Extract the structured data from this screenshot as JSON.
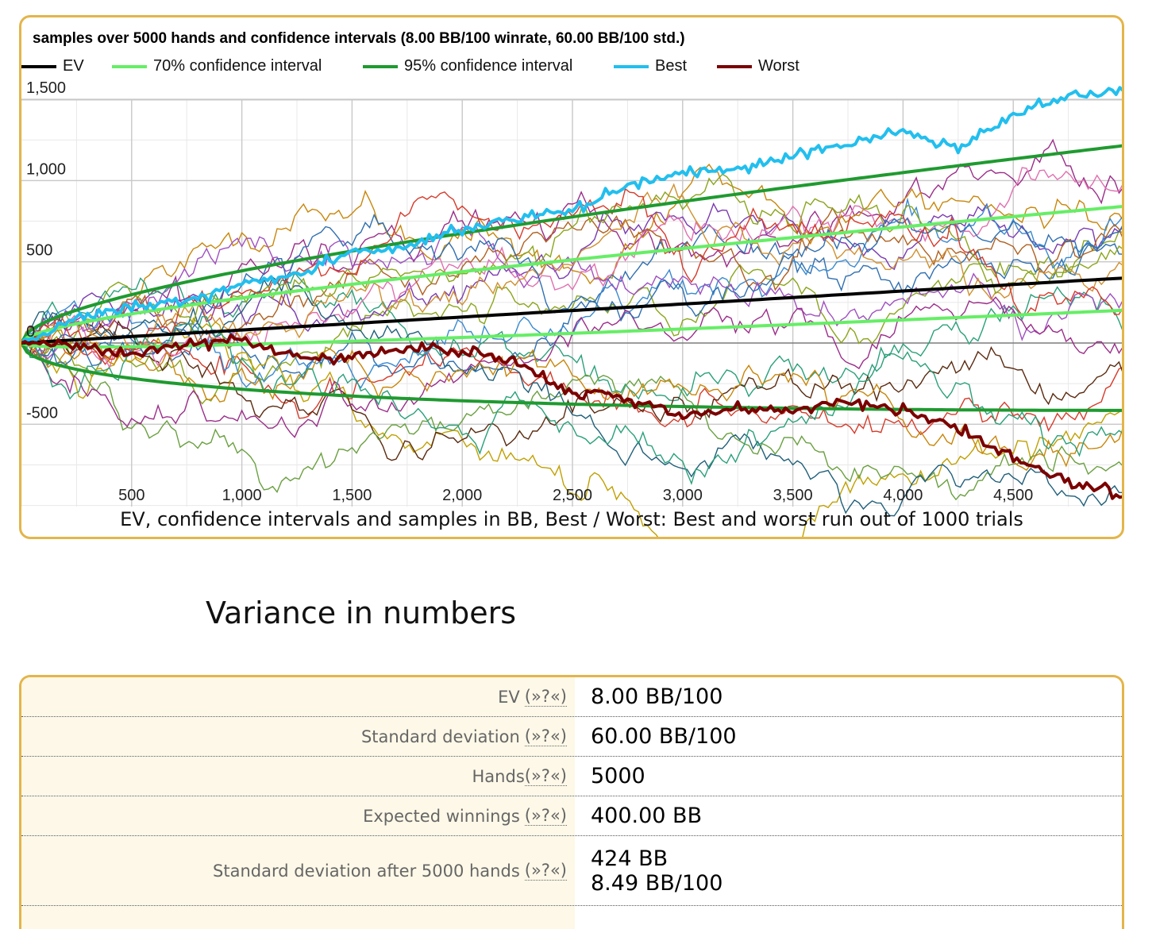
{
  "chart": {
    "title": "samples over 5000 hands and confidence intervals (8.00 BB/100 winrate, 60.00 BB/100 std.)",
    "caption": "EV, confidence intervals and samples in BB, Best / Worst: Best and worst run out of 1000 trials",
    "legend": [
      {
        "label": "EV",
        "color": "#000000"
      },
      {
        "label": "70% confidence interval",
        "color": "#66ee66"
      },
      {
        "label": "95% confidence interval",
        "color": "#1f9a30"
      },
      {
        "label": "Best",
        "color": "#22bfee"
      },
      {
        "label": "Worst",
        "color": "#7a0000"
      }
    ]
  },
  "chart_data": {
    "type": "line",
    "title": "samples over 5000 hands and confidence intervals (8.00 BB/100 winrate, 60.00 BB/100 std.)",
    "xlabel": "",
    "ylabel": "",
    "xlim": [
      0,
      5000
    ],
    "ylim": [
      -1000,
      1600
    ],
    "x_ticks": [
      "500",
      "1,000",
      "1,500",
      "2,000",
      "2,500",
      "3,000",
      "3,500",
      "4,000",
      "4,500"
    ],
    "y_ticks": [
      "1,500",
      "1,000",
      "500",
      "0",
      "-500"
    ],
    "grid": true,
    "legend_position": "top",
    "series": [
      {
        "name": "EV",
        "color": "#000000",
        "x": [
          0,
          1000,
          2000,
          3000,
          4000,
          5000
        ],
        "y": [
          0,
          80,
          160,
          240,
          320,
          400
        ]
      },
      {
        "name": "70% confidence interval",
        "color": "#66ee66",
        "x": [
          0,
          500,
          1000,
          2000,
          3000,
          4000,
          5000
        ],
        "y": [
          0,
          80,
          140,
          245,
          342,
          440,
          824
        ],
        "y_lower": [
          0,
          -54,
          -60,
          -63,
          -24,
          0,
          -24
        ]
      },
      {
        "name": "95% confidence interval",
        "color": "#1f9a30",
        "x": [
          0,
          500,
          1000,
          2000,
          3000,
          4000,
          5000
        ],
        "y": [
          0,
          227,
          452,
          714,
          926,
          1112,
          1231
        ],
        "y_lower": [
          0,
          -174,
          -296,
          -375,
          -425,
          -445,
          -431
        ]
      },
      {
        "name": "Best",
        "color": "#22bfee",
        "x": [
          0,
          250,
          500,
          750,
          1000,
          1250,
          1500,
          1750,
          2000,
          2250,
          2500,
          2750,
          3000,
          3250,
          3500,
          3750,
          4000,
          4250,
          4500,
          4750,
          5000
        ],
        "y": [
          0,
          150,
          230,
          260,
          360,
          420,
          560,
          600,
          700,
          760,
          820,
          980,
          1050,
          1060,
          1160,
          1230,
          1300,
          1200,
          1400,
          1520,
          1560
        ]
      },
      {
        "name": "Worst",
        "color": "#7a0000",
        "x": [
          0,
          250,
          500,
          750,
          1000,
          1250,
          1500,
          1750,
          2000,
          2250,
          2500,
          2750,
          3000,
          3250,
          3500,
          3750,
          4000,
          4250,
          4500,
          4750,
          5000
        ],
        "y": [
          0,
          -20,
          -60,
          -10,
          30,
          -100,
          -80,
          -20,
          -40,
          -120,
          -320,
          -340,
          -450,
          -400,
          -420,
          -360,
          -410,
          -520,
          -700,
          -850,
          -940
        ]
      }
    ]
  },
  "variance": {
    "title": "Variance in numbers",
    "help_text": "(»?«)",
    "rows": [
      {
        "label": "EV ",
        "values": [
          "8.00 BB/100"
        ]
      },
      {
        "label": "Standard deviation ",
        "values": [
          "60.00 BB/100"
        ]
      },
      {
        "label": "Hands",
        "values": [
          "5000"
        ]
      },
      {
        "label": "Expected winnings ",
        "values": [
          "400.00 BB"
        ]
      },
      {
        "label": "Standard deviation after 5000 hands ",
        "values": [
          "424 BB",
          "8.49 BB/100"
        ]
      }
    ]
  }
}
